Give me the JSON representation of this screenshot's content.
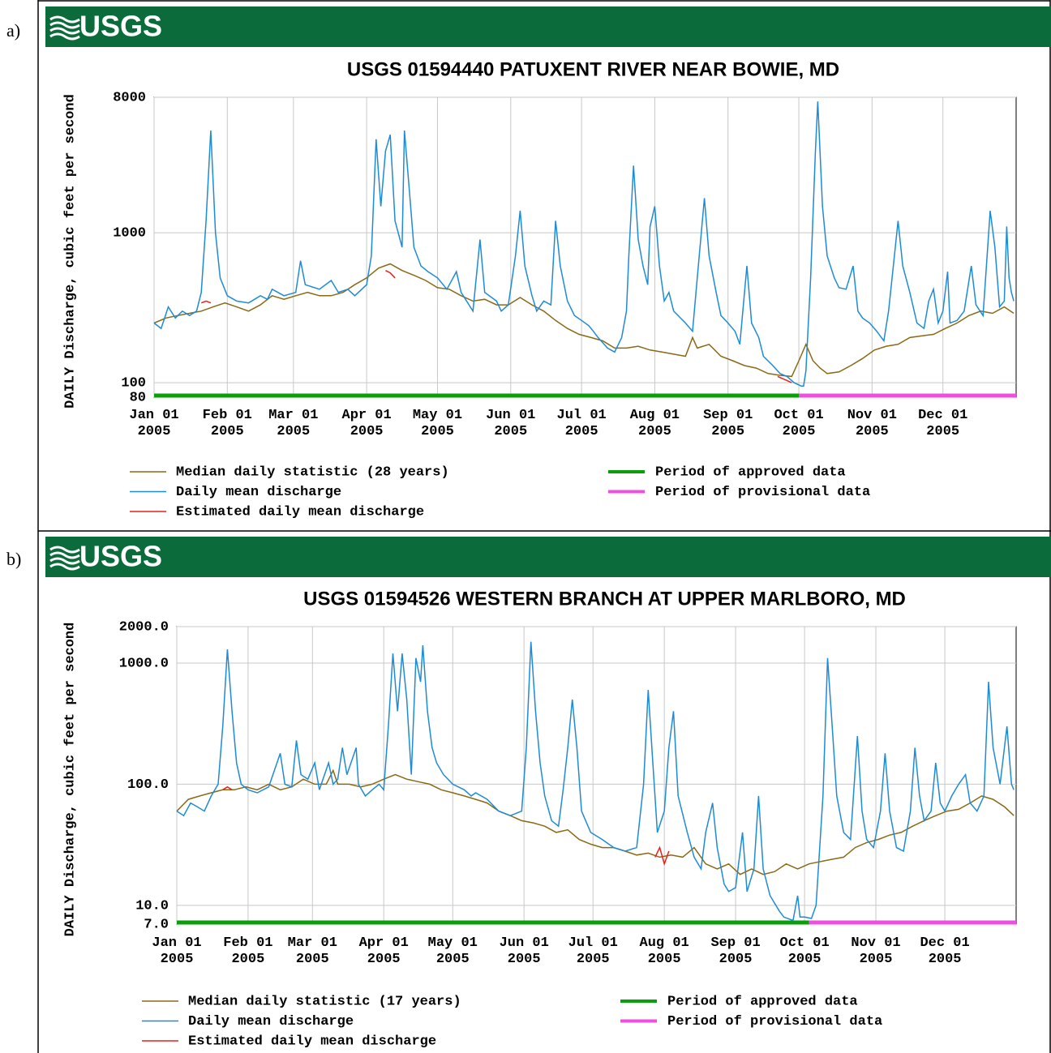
{
  "panel_labels": [
    "a)",
    "b)"
  ],
  "chart_data": [
    {
      "type": "line",
      "logo": "USGS",
      "title": "USGS 01594440 PATUXENT RIVER NEAR BOWIE, MD",
      "ylabel": "DAILY Discharge, cubic feet per second",
      "log_y": true,
      "grid": true,
      "xlim": [
        0,
        365
      ],
      "xticks": [
        {
          "value": 0,
          "label": "Jan 01 2005"
        },
        {
          "value": 31,
          "label": "Feb 01 2005"
        },
        {
          "value": 59,
          "label": "Mar 01 2005"
        },
        {
          "value": 90,
          "label": "Apr 01 2005"
        },
        {
          "value": 120,
          "label": "May 01 2005"
        },
        {
          "value": 151,
          "label": "Jun 01 2005"
        },
        {
          "value": 181,
          "label": "Jul 01 2005"
        },
        {
          "value": 212,
          "label": "Aug 01 2005"
        },
        {
          "value": 243,
          "label": "Sep 01 2005"
        },
        {
          "value": 273,
          "label": "Oct 01 2005"
        },
        {
          "value": 304,
          "label": "Nov 01 2005"
        },
        {
          "value": 334,
          "label": "Dec 01 2005"
        }
      ],
      "ylim": [
        80,
        8000
      ],
      "yticks": [
        80,
        100,
        1000,
        8000
      ],
      "series": [
        {
          "name": "Median daily statistic (28 years)",
          "color": "#8b6914",
          "x": [
            0,
            5,
            10,
            15,
            20,
            25,
            30,
            35,
            40,
            45,
            50,
            55,
            60,
            65,
            70,
            75,
            80,
            85,
            90,
            95,
            100,
            105,
            110,
            115,
            120,
            125,
            130,
            135,
            140,
            145,
            150,
            155,
            160,
            165,
            170,
            175,
            180,
            185,
            190,
            195,
            200,
            205,
            210,
            215,
            220,
            225,
            228,
            230,
            235,
            240,
            245,
            250,
            255,
            260,
            265,
            270,
            273,
            276,
            279,
            282,
            285,
            290,
            295,
            300,
            305,
            310,
            315,
            320,
            325,
            330,
            335,
            340,
            345,
            350,
            355,
            360,
            364
          ],
          "values": [
            250,
            270,
            280,
            290,
            300,
            320,
            340,
            320,
            300,
            330,
            380,
            360,
            380,
            400,
            380,
            380,
            400,
            450,
            500,
            580,
            620,
            560,
            520,
            480,
            430,
            420,
            380,
            350,
            360,
            330,
            330,
            370,
            330,
            300,
            260,
            230,
            210,
            200,
            190,
            170,
            170,
            175,
            165,
            160,
            155,
            150,
            200,
            170,
            180,
            150,
            140,
            130,
            125,
            115,
            112,
            110,
            140,
            180,
            140,
            125,
            115,
            118,
            130,
            145,
            165,
            175,
            180,
            200,
            205,
            210,
            230,
            250,
            280,
            300,
            290,
            320,
            290
          ]
        },
        {
          "name": "Daily mean discharge",
          "color": "#1e8bd6",
          "x": [
            0,
            3,
            6,
            9,
            12,
            15,
            18,
            20,
            22,
            24,
            26,
            28,
            31,
            35,
            40,
            45,
            48,
            50,
            55,
            60,
            62,
            64,
            70,
            75,
            78,
            82,
            85,
            90,
            92,
            94,
            96,
            98,
            100,
            102,
            105,
            106,
            108,
            110,
            113,
            116,
            120,
            124,
            128,
            130,
            135,
            138,
            140,
            145,
            147,
            150,
            153,
            155,
            157,
            160,
            162,
            165,
            168,
            170,
            172,
            175,
            178,
            181,
            184,
            186,
            188,
            192,
            195,
            198,
            200,
            201,
            203,
            205,
            207,
            209,
            210,
            212,
            214,
            216,
            218,
            220,
            225,
            228,
            230,
            233,
            235,
            238,
            240,
            243,
            246,
            248,
            251,
            253,
            256,
            258,
            262,
            265,
            268,
            271,
            274,
            275,
            276,
            278,
            280,
            281,
            283,
            285,
            288,
            290,
            293,
            296,
            298,
            300,
            303,
            306,
            309,
            311,
            313,
            315,
            317,
            320,
            323,
            326,
            328,
            330,
            332,
            334,
            336,
            337,
            340,
            343,
            346,
            348,
            351,
            354,
            356,
            358,
            360,
            361,
            362,
            363,
            364
          ],
          "values": [
            250,
            230,
            320,
            270,
            300,
            280,
            300,
            400,
            1200,
            4800,
            1000,
            500,
            380,
            350,
            340,
            380,
            360,
            420,
            380,
            400,
            650,
            450,
            420,
            480,
            400,
            420,
            380,
            450,
            700,
            4200,
            1500,
            3500,
            4500,
            1200,
            800,
            4800,
            2000,
            800,
            600,
            550,
            500,
            420,
            550,
            400,
            300,
            900,
            400,
            350,
            300,
            330,
            700,
            1400,
            600,
            380,
            300,
            350,
            330,
            1200,
            600,
            350,
            280,
            260,
            240,
            220,
            200,
            170,
            160,
            200,
            300,
            700,
            2800,
            900,
            600,
            450,
            1100,
            1500,
            600,
            350,
            400,
            300,
            250,
            220,
            500,
            1700,
            700,
            400,
            280,
            250,
            220,
            180,
            600,
            250,
            200,
            150,
            130,
            115,
            110,
            100,
            95,
            95,
            120,
            500,
            3500,
            7500,
            1500,
            700,
            500,
            430,
            420,
            600,
            300,
            270,
            250,
            220,
            190,
            300,
            600,
            1200,
            600,
            400,
            250,
            230,
            350,
            420,
            250,
            300,
            550,
            250,
            260,
            300,
            600,
            330,
            280,
            1400,
            800,
            320,
            350,
            1100,
            500,
            400,
            350
          ]
        },
        {
          "name": "Estimated daily mean discharge",
          "color": "#e8201a",
          "x": [
            20,
            22,
            24,
            25,
            98,
            100,
            102,
            103,
            264,
            267,
            270
          ],
          "values": [
            340,
            350,
            340,
            null,
            560,
            540,
            500,
            null,
            110,
            105,
            100
          ]
        }
      ],
      "periods": [
        {
          "name": "Period of approved data",
          "color": "#0a9e0a",
          "start": 0,
          "end": 273
        },
        {
          "name": "Period of provisional data",
          "color": "#ee4fe0",
          "start": 273,
          "end": 365
        }
      ]
    },
    {
      "type": "line",
      "logo": "USGS",
      "title": "USGS 01594526 WESTERN BRANCH AT UPPER MARLBORO, MD",
      "ylabel": "DAILY Discharge, cubic feet per second",
      "log_y": true,
      "grid": true,
      "xlim": [
        0,
        365
      ],
      "xticks": [
        {
          "value": 0,
          "label": "Jan 01 2005"
        },
        {
          "value": 31,
          "label": "Feb 01 2005"
        },
        {
          "value": 59,
          "label": "Mar 01 2005"
        },
        {
          "value": 90,
          "label": "Apr 01 2005"
        },
        {
          "value": 120,
          "label": "May 01 2005"
        },
        {
          "value": 151,
          "label": "Jun 01 2005"
        },
        {
          "value": 181,
          "label": "Jul 01 2005"
        },
        {
          "value": 212,
          "label": "Aug 01 2005"
        },
        {
          "value": 243,
          "label": "Sep 01 2005"
        },
        {
          "value": 273,
          "label": "Oct 01 2005"
        },
        {
          "value": 304,
          "label": "Nov 01 2005"
        },
        {
          "value": 334,
          "label": "Dec 01 2005"
        }
      ],
      "ylim": [
        7,
        2000
      ],
      "yticks": [
        {
          "value": 7,
          "label": "7.0"
        },
        {
          "value": 10,
          "label": "10.0"
        },
        {
          "value": 100,
          "label": "100.0"
        },
        {
          "value": 1000,
          "label": "1000.0"
        },
        {
          "value": 2000,
          "label": "2000.0"
        }
      ],
      "series": [
        {
          "name": "Median daily statistic (17 years)",
          "color": "#8b6914",
          "x": [
            0,
            5,
            10,
            15,
            20,
            25,
            30,
            35,
            40,
            45,
            50,
            55,
            60,
            65,
            68,
            70,
            75,
            80,
            85,
            90,
            95,
            100,
            105,
            110,
            115,
            120,
            125,
            130,
            135,
            140,
            145,
            150,
            155,
            160,
            165,
            170,
            175,
            180,
            185,
            190,
            195,
            200,
            205,
            210,
            215,
            220,
            225,
            230,
            235,
            240,
            245,
            250,
            255,
            260,
            265,
            270,
            275,
            280,
            285,
            290,
            295,
            300,
            305,
            310,
            315,
            320,
            325,
            330,
            335,
            340,
            345,
            350,
            355,
            360,
            364
          ],
          "values": [
            60,
            75,
            80,
            85,
            90,
            90,
            95,
            90,
            100,
            90,
            95,
            110,
            100,
            100,
            130,
            100,
            100,
            95,
            100,
            110,
            120,
            110,
            105,
            100,
            90,
            85,
            80,
            75,
            70,
            60,
            55,
            50,
            48,
            45,
            40,
            42,
            35,
            32,
            30,
            30,
            28,
            26,
            27,
            25,
            26,
            25,
            30,
            22,
            20,
            22,
            18,
            20,
            18,
            19,
            22,
            20,
            22,
            23,
            24,
            25,
            30,
            33,
            35,
            38,
            40,
            45,
            50,
            55,
            60,
            62,
            70,
            80,
            75,
            65,
            55
          ]
        },
        {
          "name": "Daily mean discharge",
          "color": "#1e8bd6",
          "x": [
            0,
            3,
            6,
            9,
            12,
            15,
            18,
            20,
            22,
            24,
            26,
            28,
            31,
            35,
            40,
            45,
            47,
            50,
            52,
            54,
            57,
            60,
            62,
            66,
            68,
            70,
            72,
            74,
            78,
            79,
            82,
            85,
            88,
            90,
            92,
            94,
            96,
            98,
            100,
            102,
            104,
            106,
            107,
            109,
            111,
            113,
            116,
            120,
            125,
            128,
            130,
            135,
            140,
            145,
            150,
            152,
            154,
            156,
            158,
            160,
            163,
            166,
            168,
            170,
            172,
            174,
            176,
            180,
            185,
            190,
            195,
            200,
            203,
            205,
            207,
            209,
            212,
            214,
            216,
            218,
            222,
            225,
            228,
            230,
            233,
            235,
            238,
            240,
            243,
            246,
            248,
            251,
            253,
            255,
            258,
            262,
            264,
            268,
            270,
            271,
            273,
            276,
            278,
            281,
            283,
            285,
            287,
            290,
            293,
            296,
            298,
            300,
            303,
            306,
            308,
            310,
            313,
            316,
            319,
            321,
            323,
            325,
            328,
            330,
            332,
            334,
            337,
            340,
            343,
            345,
            348,
            351,
            353,
            355,
            358,
            361,
            363,
            364
          ],
          "values": [
            60,
            55,
            70,
            65,
            60,
            80,
            100,
            300,
            1300,
            400,
            150,
            100,
            90,
            85,
            95,
            180,
            100,
            95,
            230,
            120,
            110,
            150,
            90,
            150,
            100,
            110,
            200,
            120,
            200,
            100,
            80,
            90,
            100,
            90,
            300,
            1200,
            400,
            1200,
            500,
            120,
            1100,
            700,
            1400,
            400,
            200,
            150,
            120,
            100,
            90,
            80,
            85,
            75,
            60,
            55,
            60,
            200,
            1500,
            400,
            150,
            80,
            50,
            45,
            90,
            200,
            500,
            200,
            60,
            40,
            35,
            30,
            28,
            30,
            100,
            600,
            150,
            40,
            60,
            200,
            400,
            80,
            40,
            25,
            20,
            40,
            70,
            30,
            15,
            13,
            14,
            40,
            13,
            20,
            80,
            20,
            12,
            9,
            8,
            7.5,
            12,
            8,
            8,
            7.8,
            10,
            80,
            1100,
            300,
            80,
            40,
            35,
            250,
            60,
            35,
            30,
            60,
            180,
            60,
            30,
            28,
            60,
            200,
            80,
            50,
            60,
            150,
            70,
            60,
            80,
            100,
            120,
            70,
            60,
            80,
            700,
            200,
            100,
            300,
            100,
            90
          ]
        },
        {
          "name": "Estimated daily mean discharge",
          "color": "#e8201a",
          "x": [
            20,
            22,
            24,
            25,
            208,
            210,
            212,
            214
          ],
          "values": [
            90,
            95,
            90,
            null,
            25,
            30,
            22,
            28
          ]
        }
      ],
      "periods": [
        {
          "name": "Period of approved data",
          "color": "#0a9e0a",
          "start": 0,
          "end": 275
        },
        {
          "name": "Period of provisional data",
          "color": "#ee4fe0",
          "start": 275,
          "end": 365
        }
      ]
    }
  ]
}
